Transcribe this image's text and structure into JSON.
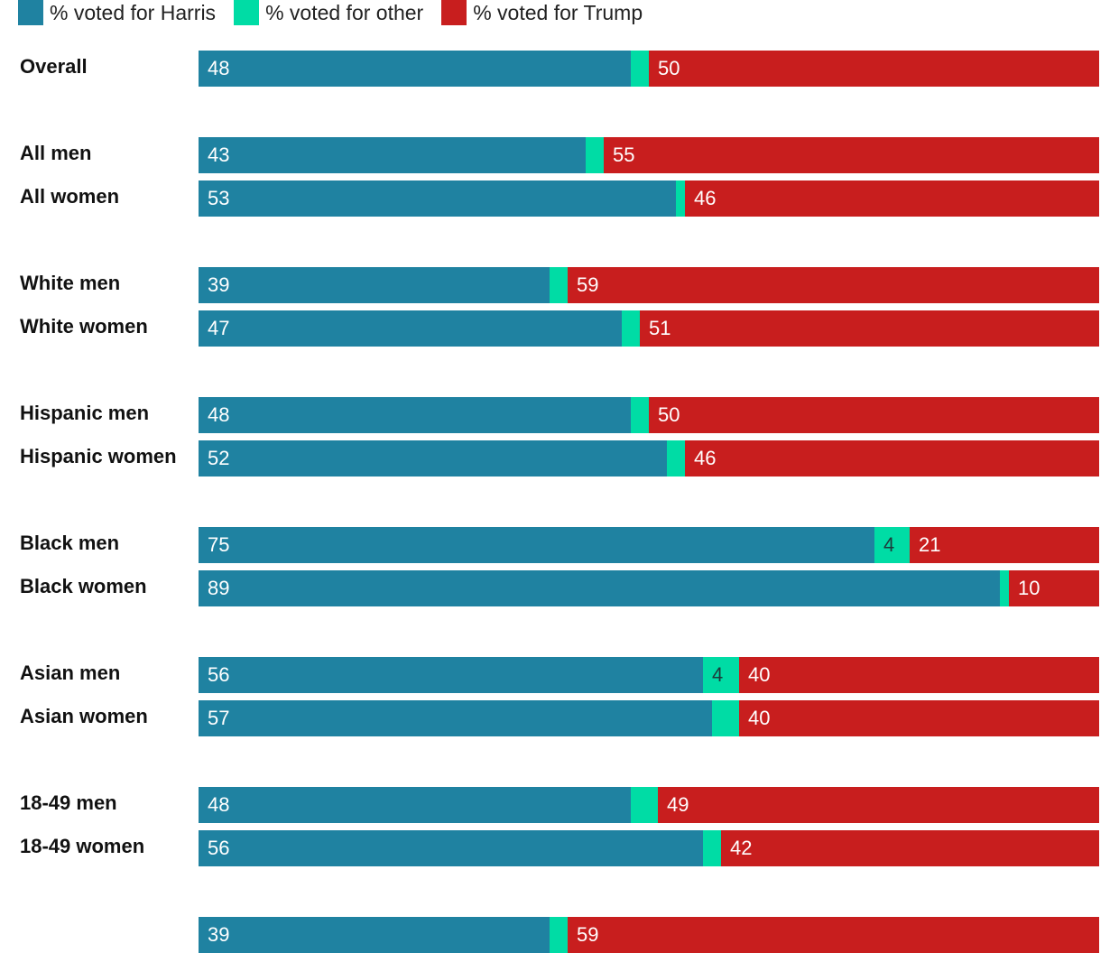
{
  "chart_data": {
    "type": "bar",
    "orientation": "horizontal",
    "stacked": true,
    "xlim": [
      0,
      100
    ],
    "legend_position": "top-left",
    "grid": false,
    "legend": [
      {
        "name": "% voted for Harris",
        "color": "#1f82a1"
      },
      {
        "name": "% voted for other",
        "color": "#00dca5"
      },
      {
        "name": "% voted for Trump",
        "color": "#c81e1e"
      }
    ],
    "groups": [
      [
        {
          "label": "Overall",
          "harris": 48,
          "other": 2,
          "trump": 50
        }
      ],
      [
        {
          "label": "All men",
          "harris": 43,
          "other": 2,
          "trump": 55
        },
        {
          "label": "All women",
          "harris": 53,
          "other": 1,
          "trump": 46
        }
      ],
      [
        {
          "label": "White men",
          "harris": 39,
          "other": 2,
          "trump": 59
        },
        {
          "label": "White women",
          "harris": 47,
          "other": 2,
          "trump": 51
        }
      ],
      [
        {
          "label": "Hispanic men",
          "harris": 48,
          "other": 2,
          "trump": 50
        },
        {
          "label": "Hispanic women",
          "harris": 52,
          "other": 2,
          "trump": 46
        }
      ],
      [
        {
          "label": "Black men",
          "harris": 75,
          "other": 4,
          "trump": 21
        },
        {
          "label": "Black women",
          "harris": 89,
          "other": 1,
          "trump": 10
        }
      ],
      [
        {
          "label": "Asian men",
          "harris": 56,
          "other": 4,
          "trump": 40
        },
        {
          "label": "Asian women",
          "harris": 57,
          "other": 3,
          "trump": 40
        }
      ],
      [
        {
          "label": "18-49 men",
          "harris": 48,
          "other": 3,
          "trump": 49
        },
        {
          "label": "18-49 women",
          "harris": 56,
          "other": 2,
          "trump": 42
        }
      ],
      [
        {
          "label": "",
          "harris": 39,
          "other": 2,
          "trump": 59
        }
      ]
    ]
  }
}
